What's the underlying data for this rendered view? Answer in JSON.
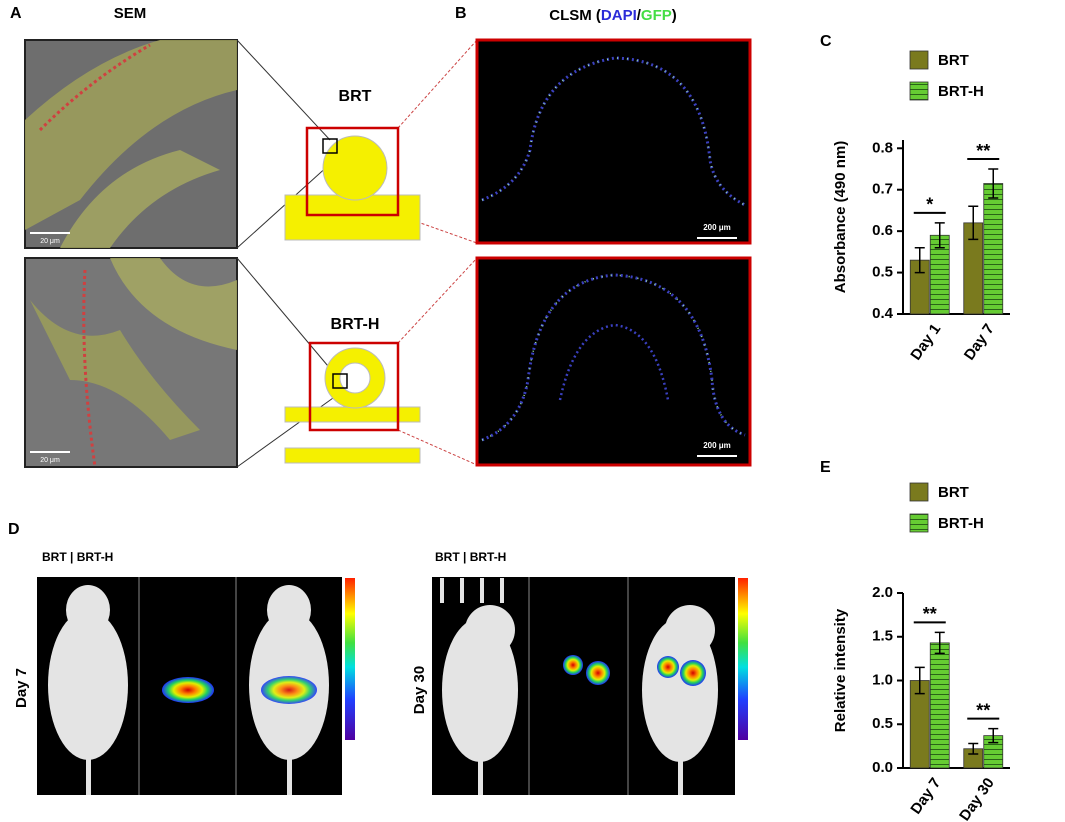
{
  "chart_data": [
    {
      "type": "bar",
      "panel": "C",
      "ylabel": "Absorbance (490 nm)",
      "categories": [
        "Day 1",
        "Day 7"
      ],
      "series": [
        {
          "name": "BRT",
          "color": "#7a7a1e",
          "values": [
            0.53,
            0.62
          ],
          "errors": [
            0.03,
            0.04
          ]
        },
        {
          "name": "BRT-H",
          "color": "#66cc33",
          "values": [
            0.59,
            0.715
          ],
          "errors": [
            0.03,
            0.035
          ]
        }
      ],
      "significance": [
        "*",
        "**"
      ],
      "ylim": [
        0.4,
        0.82
      ],
      "yticks": [
        0.4,
        0.5,
        0.6,
        0.7,
        0.8
      ]
    },
    {
      "type": "bar",
      "panel": "E",
      "ylabel": "Relative intensity",
      "categories": [
        "Day 7",
        "Day 30"
      ],
      "series": [
        {
          "name": "BRT",
          "color": "#7a7a1e",
          "values": [
            1.0,
            0.22
          ],
          "errors": [
            0.15,
            0.06
          ]
        },
        {
          "name": "BRT-H",
          "color": "#66cc33",
          "values": [
            1.43,
            0.37
          ],
          "errors": [
            0.12,
            0.08
          ]
        }
      ],
      "significance": [
        "**",
        "**"
      ],
      "ylim": [
        0,
        2.0
      ],
      "yticks": [
        {
          "value": 0,
          "label": "0.0"
        },
        0.5,
        {
          "value": 1,
          "label": "1.0"
        },
        1.5,
        {
          "value": 2,
          "label": "2.0"
        }
      ]
    }
  ],
  "figure": {
    "panel_a": {
      "letter": "A",
      "title": "SEM",
      "scale_top": "20 μm",
      "scale_bottom": "20 μm",
      "label_top": "BRT",
      "label_bottom": "BRT-H"
    },
    "panel_b": {
      "letter": "B",
      "title_parts": [
        "CLSM (",
        "DAPI",
        "/",
        "GFP",
        ")"
      ],
      "scale_top": "200 μm",
      "scale_bottom": "200 μm"
    },
    "panel_d": {
      "letter": "D",
      "header_left": "BRT | BRT-H",
      "header_right": "BRT | BRT-H",
      "day_left": "Day 7",
      "day_right": "Day 30"
    }
  }
}
